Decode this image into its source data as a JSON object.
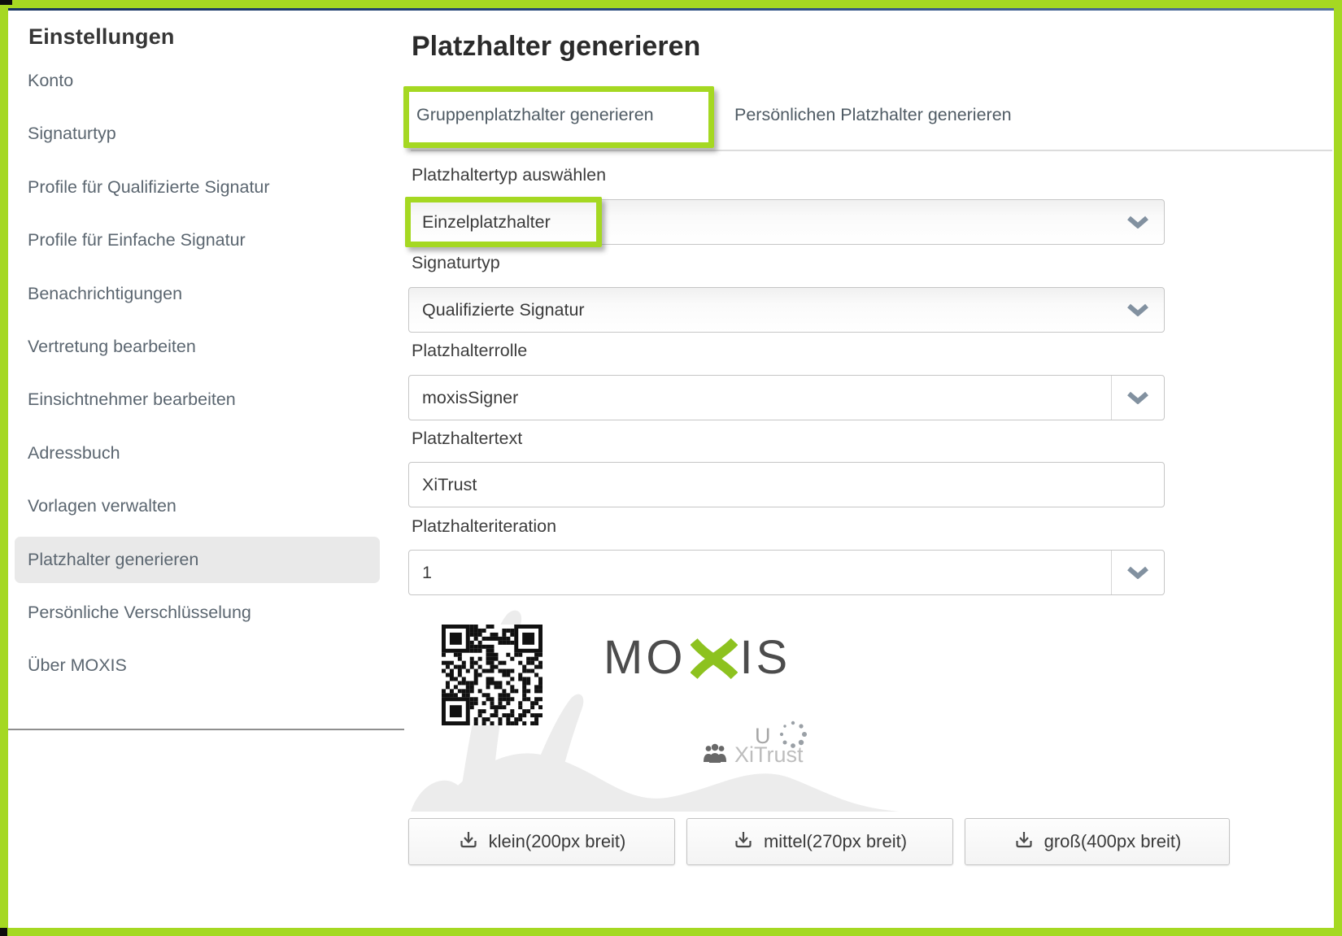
{
  "frame": {
    "annotation_green": "#a5d822",
    "top_line_navy": "#1c3a63"
  },
  "sidebar": {
    "title": "Einstellungen",
    "items": [
      {
        "label": "Konto",
        "active": false
      },
      {
        "label": "Signaturtyp",
        "active": false
      },
      {
        "label": "Profile für Qualifizierte Signatur",
        "active": false
      },
      {
        "label": "Profile für Einfache Signatur",
        "active": false
      },
      {
        "label": "Benachrichtigungen",
        "active": false
      },
      {
        "label": "Vertretung bearbeiten",
        "active": false
      },
      {
        "label": "Einsichtnehmer bearbeiten",
        "active": false
      },
      {
        "label": "Adressbuch",
        "active": false
      },
      {
        "label": "Vorlagen verwalten",
        "active": false
      },
      {
        "label": "Platzhalter generieren",
        "active": true
      },
      {
        "label": "Persönliche Verschlüsselung",
        "active": false
      },
      {
        "label": "Über MOXIS",
        "active": false
      }
    ]
  },
  "main": {
    "title": "Platzhalter generieren",
    "tabs": [
      {
        "label": "Gruppenplatzhalter generieren",
        "active": true,
        "annotated": true
      },
      {
        "label": "Persönlichen Platzhalter generieren",
        "active": false,
        "annotated": false
      }
    ],
    "form": {
      "placeholder_type": {
        "label": "Platzhaltertyp auswählen",
        "value": "Einzelplatzhalter",
        "annotated": true
      },
      "signature_type": {
        "label": "Signaturtyp",
        "value": "Qualifizierte Signatur"
      },
      "placeholder_role": {
        "label": "Platzhalterrolle",
        "value": "moxisSigner"
      },
      "placeholder_text": {
        "label": "Platzhaltertext",
        "value": "XiTrust"
      },
      "placeholder_iteration": {
        "label": "Platzhalteriteration",
        "value": "1"
      }
    },
    "preview": {
      "logo_left": "MO",
      "logo_right": "IS",
      "logo_x_color": "#8dc21f",
      "user_initial": "U",
      "group_label": "XiTrust"
    },
    "downloads": [
      {
        "label": "klein(200px breit)"
      },
      {
        "label": "mittel(270px breit)"
      },
      {
        "label": "groß(400px breit)"
      }
    ]
  }
}
